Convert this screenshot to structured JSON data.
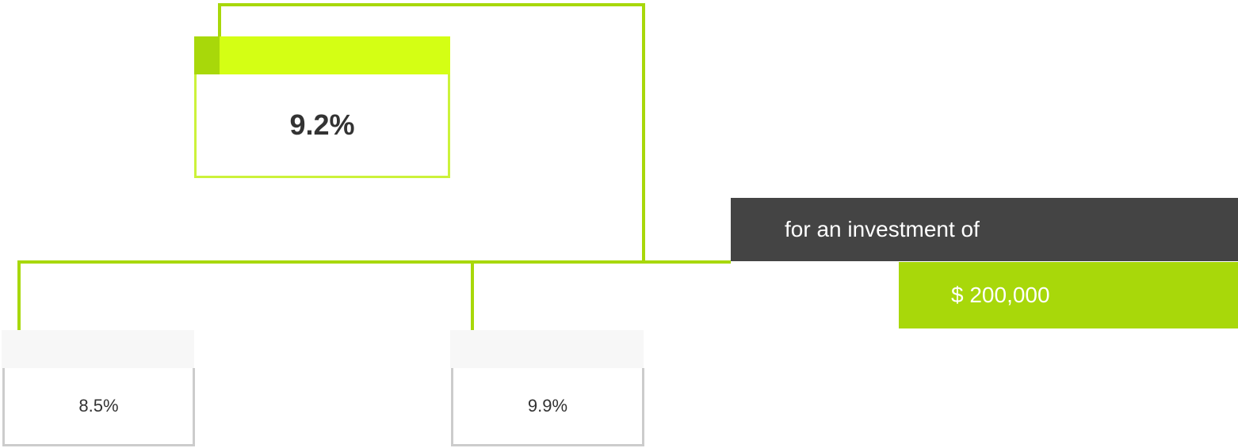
{
  "nodes": [
    {
      "label": "9.2%"
    },
    {
      "label": "8.5%"
    },
    {
      "label": "9.9%"
    }
  ],
  "investment": {
    "label": "for an investment of",
    "amount": "$ 200,000"
  }
}
